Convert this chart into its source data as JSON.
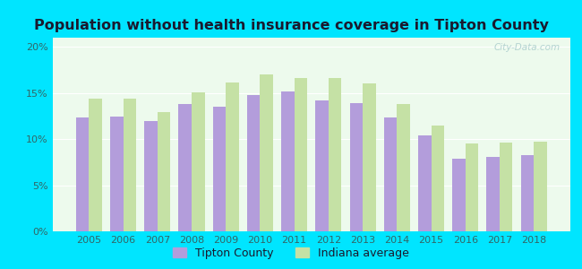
{
  "years": [
    2005,
    2006,
    2007,
    2008,
    2009,
    2010,
    2011,
    2012,
    2013,
    2014,
    2015,
    2016,
    2017,
    2018
  ],
  "tipton": [
    12.3,
    12.4,
    12.0,
    13.8,
    13.5,
    14.8,
    15.2,
    14.2,
    13.9,
    12.3,
    10.4,
    7.9,
    8.1,
    8.3
  ],
  "indiana": [
    14.4,
    14.4,
    12.9,
    15.1,
    16.1,
    17.0,
    16.6,
    16.6,
    16.0,
    13.8,
    11.5,
    9.5,
    9.6,
    9.7
  ],
  "tipton_color": "#b39ddb",
  "indiana_color": "#c5e1a5",
  "bg_outer": "#00e5ff",
  "bg_plot": "#edfaed",
  "title": "Population without health insurance coverage in Tipton County",
  "title_fontsize": 11.5,
  "title_color": "#1a1a2e",
  "ylim": [
    0,
    21
  ],
  "yticks": [
    0,
    5,
    10,
    15,
    20
  ],
  "ytick_labels": [
    "0%",
    "5%",
    "10%",
    "15%",
    "20%"
  ],
  "legend_tipton": "Tipton County",
  "legend_indiana": "Indiana average",
  "bar_width": 0.38,
  "watermark": "City-Data.com",
  "tick_color": "#336666",
  "grid_color": "#ffffff"
}
